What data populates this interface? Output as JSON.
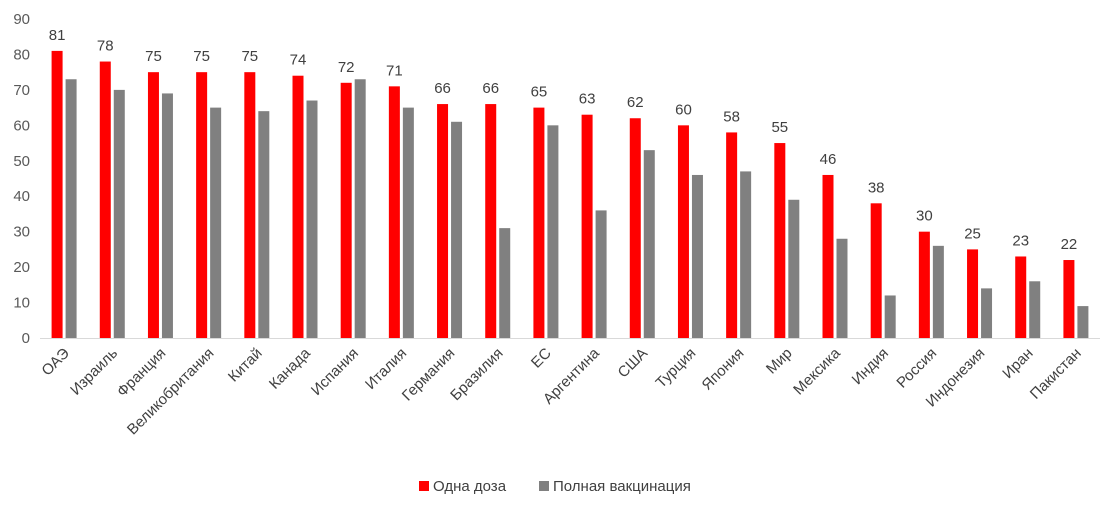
{
  "chart_data": {
    "type": "bar",
    "title": "",
    "xlabel": "",
    "ylabel": "",
    "ylim": [
      0,
      90
    ],
    "yticks": [
      0,
      10,
      20,
      30,
      40,
      50,
      60,
      70,
      80,
      90
    ],
    "grid": false,
    "legend_position": "bottom",
    "categories": [
      "ОАЭ",
      "Израиль",
      "Франция",
      "Великобритания",
      "Китай",
      "Канада",
      "Испания",
      "Италия",
      "Германия",
      "Бразилия",
      "ЕС",
      "Аргентина",
      "США",
      "Турция",
      "Япония",
      "Мир",
      "Мексика",
      "Индия",
      "Россия",
      "Индонезия",
      "Иран",
      "Пакистан"
    ],
    "series": [
      {
        "name": "Одна доза",
        "color": "#ff0000",
        "values": [
          81,
          78,
          75,
          75,
          75,
          74,
          72,
          71,
          66,
          66,
          65,
          63,
          62,
          60,
          58,
          55,
          46,
          38,
          30,
          25,
          23,
          22
        ],
        "data_labels": true
      },
      {
        "name": "Полная вакцинация",
        "color": "#808080",
        "values": [
          73,
          70,
          69,
          65,
          64,
          67,
          73,
          65,
          61,
          31,
          60,
          36,
          53,
          46,
          47,
          39,
          28,
          12,
          26,
          14,
          16,
          9
        ],
        "data_labels": false
      }
    ]
  }
}
